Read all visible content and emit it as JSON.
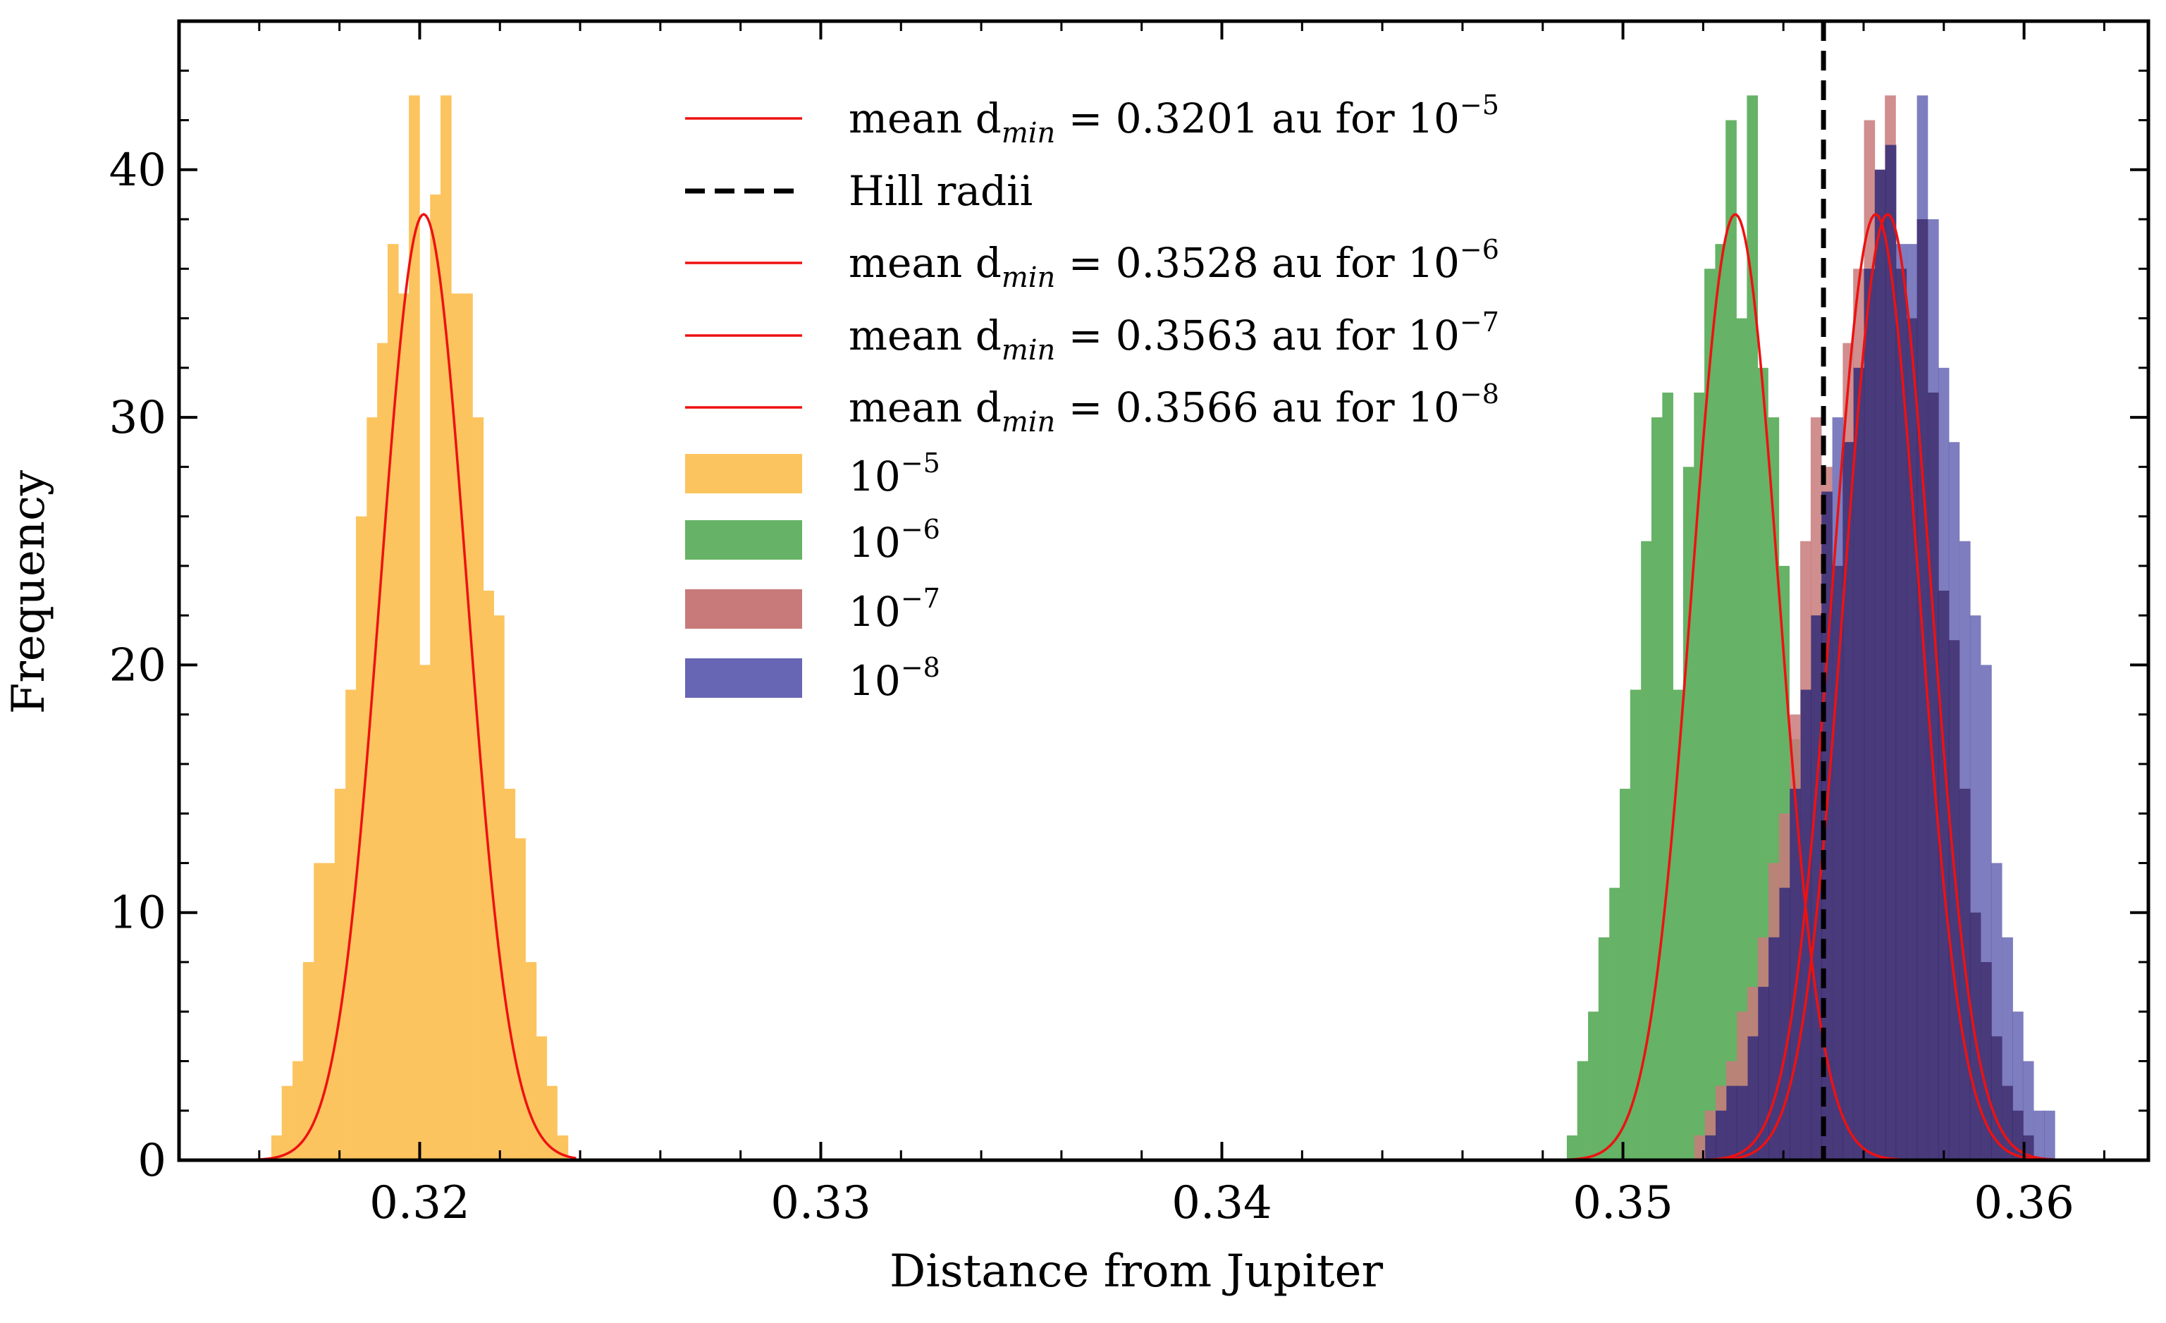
{
  "chart_data": {
    "type": "bar",
    "title": "",
    "xlabel": "Distance from Jupiter",
    "ylabel": "Frequency",
    "xlim": [
      0.314,
      0.3631
    ],
    "ylim": [
      0,
      46
    ],
    "xticks": [
      0.32,
      0.33,
      0.34,
      0.35,
      0.36
    ],
    "xtick_labels": [
      "0.32",
      "0.33",
      "0.34",
      "0.35",
      "0.36"
    ],
    "yticks": [
      0,
      10,
      20,
      30,
      40
    ],
    "ytick_labels": [
      "0",
      "10",
      "20",
      "30",
      "40"
    ],
    "grid": false,
    "legend_position": "top-center",
    "hill_radius": 0.355,
    "series": [
      {
        "name": "10",
        "exponent": "−5",
        "color": "#fcc45f",
        "bin_width": 0.000264,
        "bins_x": [
          0.3163,
          0.31656,
          0.31683,
          0.31709,
          0.31736,
          0.31762,
          0.31788,
          0.31815,
          0.31841,
          0.31868,
          0.31894,
          0.3192,
          0.31947,
          0.31973,
          0.32,
          0.32026,
          0.32052,
          0.32079,
          0.32105,
          0.32132,
          0.32158,
          0.32184,
          0.32211,
          0.32237,
          0.32264,
          0.3229,
          0.32316,
          0.32343
        ],
        "bins_y": [
          1,
          3,
          4,
          8,
          12,
          12,
          15,
          19,
          26,
          30,
          33,
          37,
          35,
          43,
          20,
          39,
          43,
          35,
          35,
          30,
          23,
          22,
          15,
          13,
          8,
          5,
          3,
          1
        ],
        "fit": {
          "mean": 0.3201,
          "sigma": 0.00108,
          "peak": 38.2,
          "from": 0.3158,
          "to": 0.3239
        },
        "fit_label": "mean d",
        "fit_sub": "min",
        "fit_value": "= 0.3201 au for 10",
        "fit_exp": "−5"
      },
      {
        "name": "10",
        "exponent": "−6",
        "color": "#66b266",
        "bin_width": 0.000264,
        "bins_x": [
          0.3486,
          0.34886,
          0.34913,
          0.34939,
          0.34966,
          0.34992,
          0.35018,
          0.35045,
          0.35071,
          0.35098,
          0.35124,
          0.3515,
          0.35177,
          0.35203,
          0.3523,
          0.35256,
          0.35282,
          0.35309,
          0.35335,
          0.35362,
          0.35388,
          0.35414,
          0.35441,
          0.35467,
          0.35494,
          0.3552
        ],
        "bins_y": [
          1,
          4,
          6,
          9,
          11,
          15,
          19,
          25,
          30,
          31,
          19,
          28,
          31,
          36,
          37,
          42,
          34,
          43,
          32,
          30,
          24,
          17,
          14,
          7,
          4,
          2
        ],
        "fit": {
          "mean": 0.3528,
          "sigma": 0.00108,
          "peak": 38.2,
          "from": 0.3482,
          "to": 0.3569
        },
        "fit_label": "mean d",
        "fit_sub": "min",
        "fit_value": "= 0.3528 au for 10",
        "fit_exp": "−6"
      },
      {
        "name": "10",
        "exponent": "−7",
        "color": "#c87a7a",
        "bin_width": 0.000264,
        "bins_x": [
          0.35178,
          0.35204,
          0.35231,
          0.35257,
          0.35284,
          0.3531,
          0.35336,
          0.35363,
          0.35389,
          0.35416,
          0.35442,
          0.35468,
          0.35495,
          0.35521,
          0.35548,
          0.35574,
          0.35601,
          0.35627,
          0.35653,
          0.3568,
          0.35706,
          0.35733,
          0.35759,
          0.35785,
          0.35812,
          0.35838,
          0.35865,
          0.35891,
          0.35918,
          0.35944,
          0.35971,
          0.35997
        ],
        "bins_y": [
          1,
          2,
          3,
          4,
          6,
          7,
          9,
          12,
          14,
          18,
          25,
          30,
          28,
          24,
          33,
          36,
          42,
          40,
          43,
          36,
          34,
          38,
          31,
          23,
          21,
          15,
          10,
          8,
          5,
          3,
          2,
          1
        ],
        "fit": {
          "mean": 0.3563,
          "sigma": 0.00108,
          "peak": 38.2,
          "from": 0.3518,
          "to": 0.3606
        },
        "fit_label": "mean d",
        "fit_sub": "min",
        "fit_value": "= 0.3563 au for 10",
        "fit_exp": "−7"
      },
      {
        "name": "10",
        "exponent": "−8",
        "color": "#6666b4",
        "bin_width": 0.000264,
        "bins_x": [
          0.35205,
          0.35231,
          0.35258,
          0.35284,
          0.35311,
          0.35337,
          0.35363,
          0.3539,
          0.35416,
          0.35443,
          0.35469,
          0.35495,
          0.35522,
          0.35548,
          0.35575,
          0.35601,
          0.35628,
          0.35654,
          0.3568,
          0.35707,
          0.35733,
          0.3576,
          0.35786,
          0.35812,
          0.35839,
          0.35865,
          0.35892,
          0.35918,
          0.35945,
          0.35971,
          0.35997,
          0.36024,
          0.3605
        ],
        "bins_y": [
          1,
          2,
          3,
          3,
          5,
          7,
          9,
          11,
          15,
          19,
          22,
          27,
          30,
          29,
          32,
          36,
          40,
          41,
          37,
          37,
          43,
          38,
          32,
          29,
          25,
          22,
          20,
          12,
          9,
          6,
          4,
          2,
          2
        ],
        "fit": {
          "mean": 0.3566,
          "sigma": 0.00108,
          "peak": 38.2,
          "from": 0.3521,
          "to": 0.3609
        },
        "fit_label": "mean d",
        "fit_sub": "min",
        "fit_value": "= 0.3566 au for 10",
        "fit_exp": "−8"
      }
    ],
    "overlap_color": "#3a2a6a",
    "hill_label": "Hill radii"
  }
}
